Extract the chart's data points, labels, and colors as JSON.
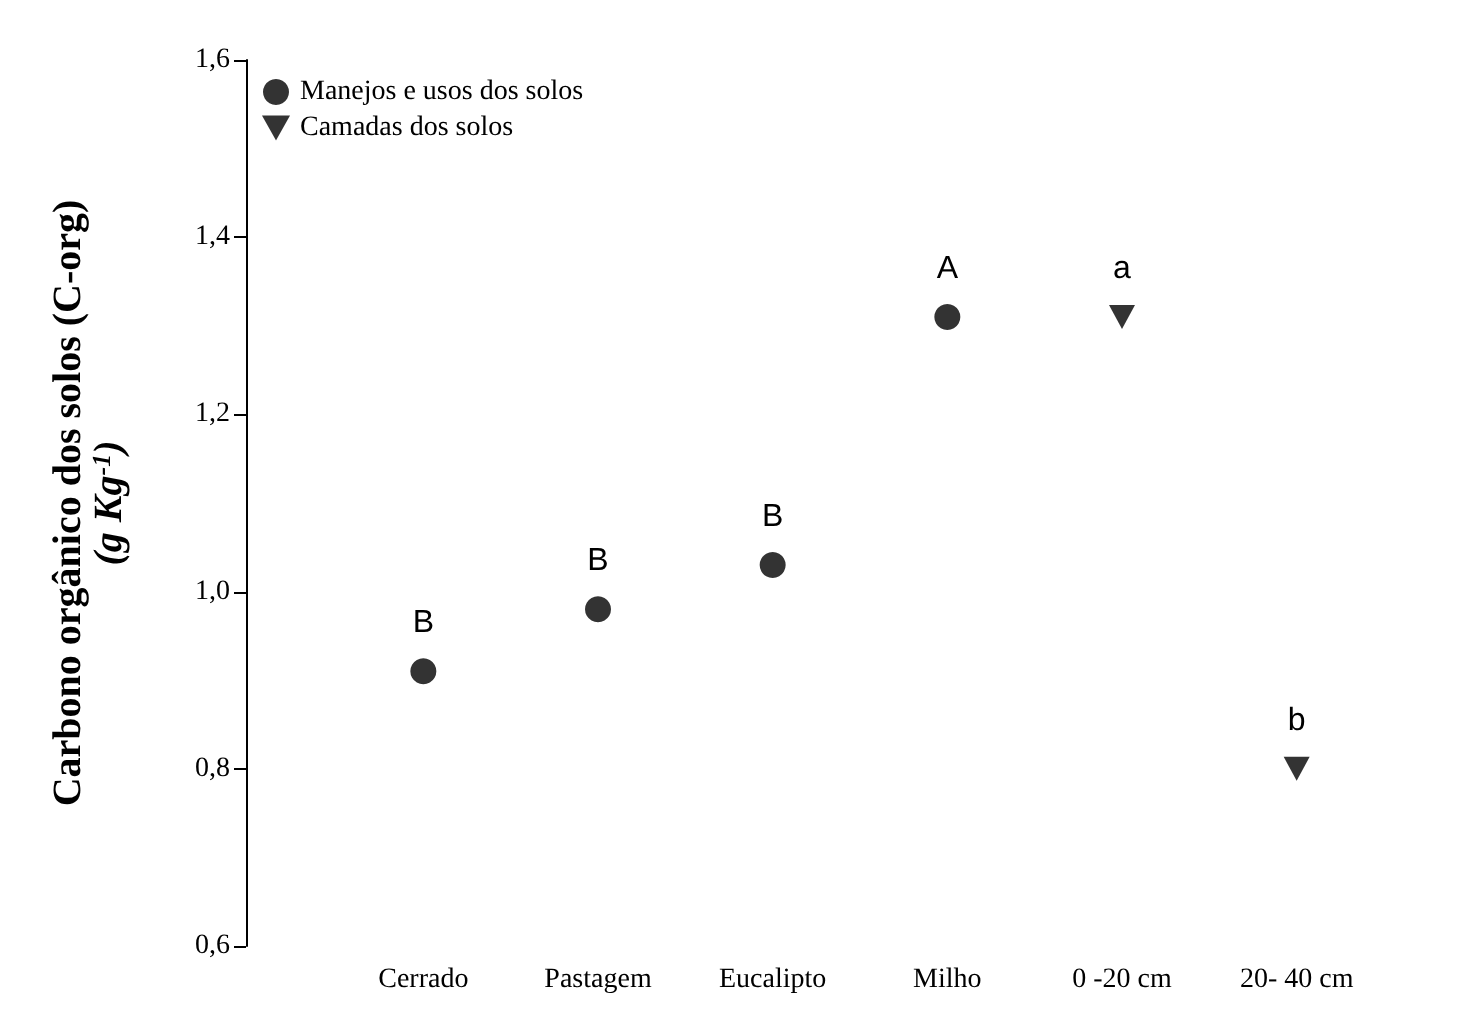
{
  "chart_data": {
    "type": "scatter",
    "ylabel": "Carbono orgânico dos solos (C-org)\n(g Kg$^{-1}$)",
    "categories": [
      "Cerrado",
      "Pastagem",
      "Eucalipto",
      "Milho",
      "0 -20 cm",
      "20- 40 cm"
    ],
    "series": [
      {
        "name": "Manejos e usos dos solos",
        "color": "#000000",
        "marker": "circle",
        "values": [
          0.91,
          0.98,
          1.03,
          1.31,
          null,
          null
        ]
      },
      {
        "name": "Camadas dos solos",
        "color": "#000000",
        "marker": "triangle_down",
        "values": [
          null,
          null,
          null,
          null,
          1.31,
          0.8
        ]
      }
    ],
    "ylim": [
      0.6,
      1.6
    ],
    "yticks": [
      {
        "value": 0.6,
        "label": "0,6"
      },
      {
        "value": 0.8,
        "label": "0,8"
      },
      {
        "value": 1.0,
        "label": "1,0"
      },
      {
        "value": 1.2,
        "label": "1,2"
      },
      {
        "value": 1.4,
        "label": "1,4"
      },
      {
        "value": 1.6,
        "label": "1,6"
      }
    ],
    "annotations": [
      {
        "text": "B",
        "x": "Cerrado",
        "y": 0.91
      },
      {
        "text": "B",
        "x": "Pastagem",
        "y": 0.98
      },
      {
        "text": "B",
        "x": "Eucalipto",
        "y": 1.03
      },
      {
        "text": "A",
        "x": "Milho",
        "y": 1.31
      },
      {
        "text": "a",
        "x": "0 -20 cm",
        "y": 1.31
      },
      {
        "text": "b",
        "x": "20- 40 cm",
        "y": 0.8
      }
    ],
    "legend": "top left",
    "grid": false
  }
}
